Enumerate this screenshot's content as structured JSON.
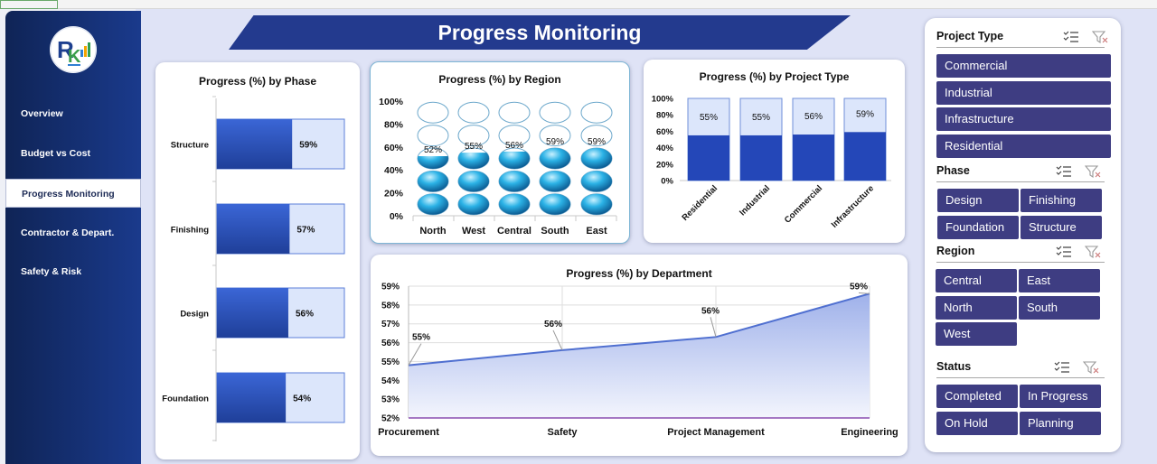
{
  "page": {
    "title": "Progress Monitoring"
  },
  "sidebar": {
    "items": [
      {
        "label": "Overview",
        "active": false
      },
      {
        "label": "Budget vs Cost",
        "active": false
      },
      {
        "label": "Progress Monitoring",
        "active": true
      },
      {
        "label": "Contractor & Depart.",
        "active": false
      },
      {
        "label": "Safety & Risk",
        "active": false
      }
    ]
  },
  "colors": {
    "primary": "#233a8e",
    "bar": "#2f56c4",
    "bar_light": "#dce6fb",
    "slicer": "#3e3d82",
    "sphere": "#1fa3d8"
  },
  "slicers": [
    {
      "title": "Project Type",
      "items": [
        "Commercial",
        "Industrial",
        "Infrastructure",
        "Residential"
      ]
    },
    {
      "title": "Phase",
      "items": [
        "Design",
        "Finishing",
        "Foundation",
        "Structure"
      ]
    },
    {
      "title": "Region",
      "items": [
        "Central",
        "East",
        "North",
        "South",
        "West"
      ]
    },
    {
      "title": "Status",
      "items": [
        "Completed",
        "In Progress",
        "On Hold",
        "Planning"
      ]
    }
  ],
  "chart_data": [
    {
      "id": "phase",
      "type": "bar",
      "orientation": "horizontal",
      "title": "Progress (%) by Phase",
      "categories": [
        "Structure",
        "Finishing",
        "Design",
        "Foundation"
      ],
      "values": [
        59,
        57,
        56,
        54
      ],
      "labels": [
        "59%",
        "57%",
        "56%",
        "54%"
      ],
      "xlim": [
        0,
        100
      ]
    },
    {
      "id": "region",
      "type": "bar",
      "style": "pictograph",
      "title": "Progress (%) by Region",
      "categories": [
        "North",
        "West",
        "Central",
        "South",
        "East"
      ],
      "values": [
        52,
        55,
        56,
        59,
        59
      ],
      "labels": [
        "52%",
        "55%",
        "56%",
        "59%",
        "59%"
      ],
      "yticks": [
        "0%",
        "20%",
        "40%",
        "60%",
        "80%",
        "100%"
      ],
      "ylim": [
        0,
        100
      ]
    },
    {
      "id": "project_type",
      "type": "bar",
      "stacked": true,
      "title": "Progress (%) by Project Type",
      "categories": [
        "Residential",
        "Industrial",
        "Commercial",
        "Infrastructure"
      ],
      "values": [
        55,
        55,
        56,
        59
      ],
      "labels": [
        "55%",
        "55%",
        "56%",
        "59%"
      ],
      "yticks": [
        "0%",
        "20%",
        "40%",
        "60%",
        "80%",
        "100%"
      ],
      "ylim": [
        0,
        100
      ]
    },
    {
      "id": "department",
      "type": "area",
      "title": "Progress (%) by Department",
      "categories": [
        "Procurement",
        "Safety",
        "Project Management",
        "Engineering"
      ],
      "values": [
        54.8,
        55.6,
        56.3,
        58.6
      ],
      "labels": [
        "55%",
        "56%",
        "56%",
        "59%"
      ],
      "yticks": [
        "52%",
        "53%",
        "54%",
        "55%",
        "56%",
        "57%",
        "58%",
        "59%"
      ],
      "ylim": [
        52,
        59
      ],
      "grid": true
    }
  ]
}
